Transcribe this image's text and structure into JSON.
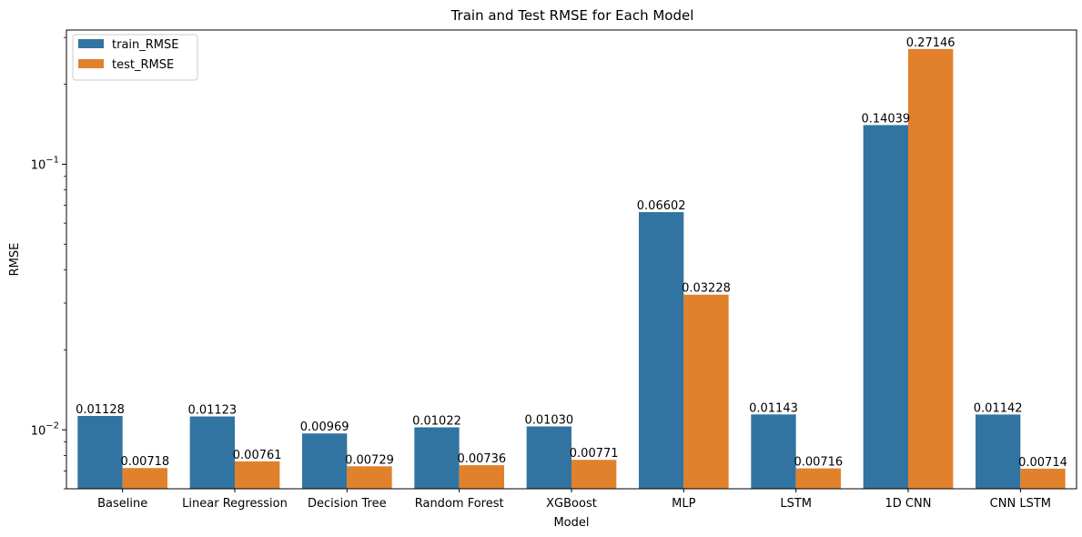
{
  "chart_data": {
    "type": "bar",
    "title": "Train and Test RMSE for Each Model",
    "xlabel": "Model",
    "ylabel": "RMSE",
    "yscale": "log",
    "ylim": [
      0.006,
      0.32
    ],
    "y_major_ticks": [
      {
        "value": 0.01,
        "base": "10",
        "exp": "−2"
      },
      {
        "value": 0.1,
        "base": "10",
        "exp": "−1"
      }
    ],
    "y_minor_ticks": [
      0.006,
      0.007,
      0.008,
      0.009,
      0.02,
      0.03,
      0.04,
      0.05,
      0.06,
      0.07,
      0.08,
      0.09,
      0.2,
      0.3
    ],
    "legend_position": "top-left",
    "categories": [
      "Baseline",
      "Linear Regression",
      "Decision Tree",
      "Random Forest",
      "XGBoost",
      "MLP",
      "LSTM",
      "1D CNN",
      "CNN LSTM"
    ],
    "series": [
      {
        "name": "train_RMSE",
        "color": "#3274a1",
        "values": [
          0.01128,
          0.01123,
          0.00969,
          0.01022,
          0.0103,
          0.06602,
          0.01143,
          0.14039,
          0.01142
        ],
        "labels": [
          "0.01128",
          "0.01123",
          "0.00969",
          "0.01022",
          "0.01030",
          "0.06602",
          "0.01143",
          "0.14039",
          "0.01142"
        ]
      },
      {
        "name": "test_RMSE",
        "color": "#e1812c",
        "values": [
          0.00718,
          0.00761,
          0.00729,
          0.00736,
          0.00771,
          0.03228,
          0.00716,
          0.27146,
          0.00714
        ],
        "labels": [
          "0.00718",
          "0.00761",
          "0.00729",
          "0.00736",
          "0.00771",
          "0.03228",
          "0.00716",
          "0.27146",
          "0.00714"
        ]
      }
    ]
  }
}
